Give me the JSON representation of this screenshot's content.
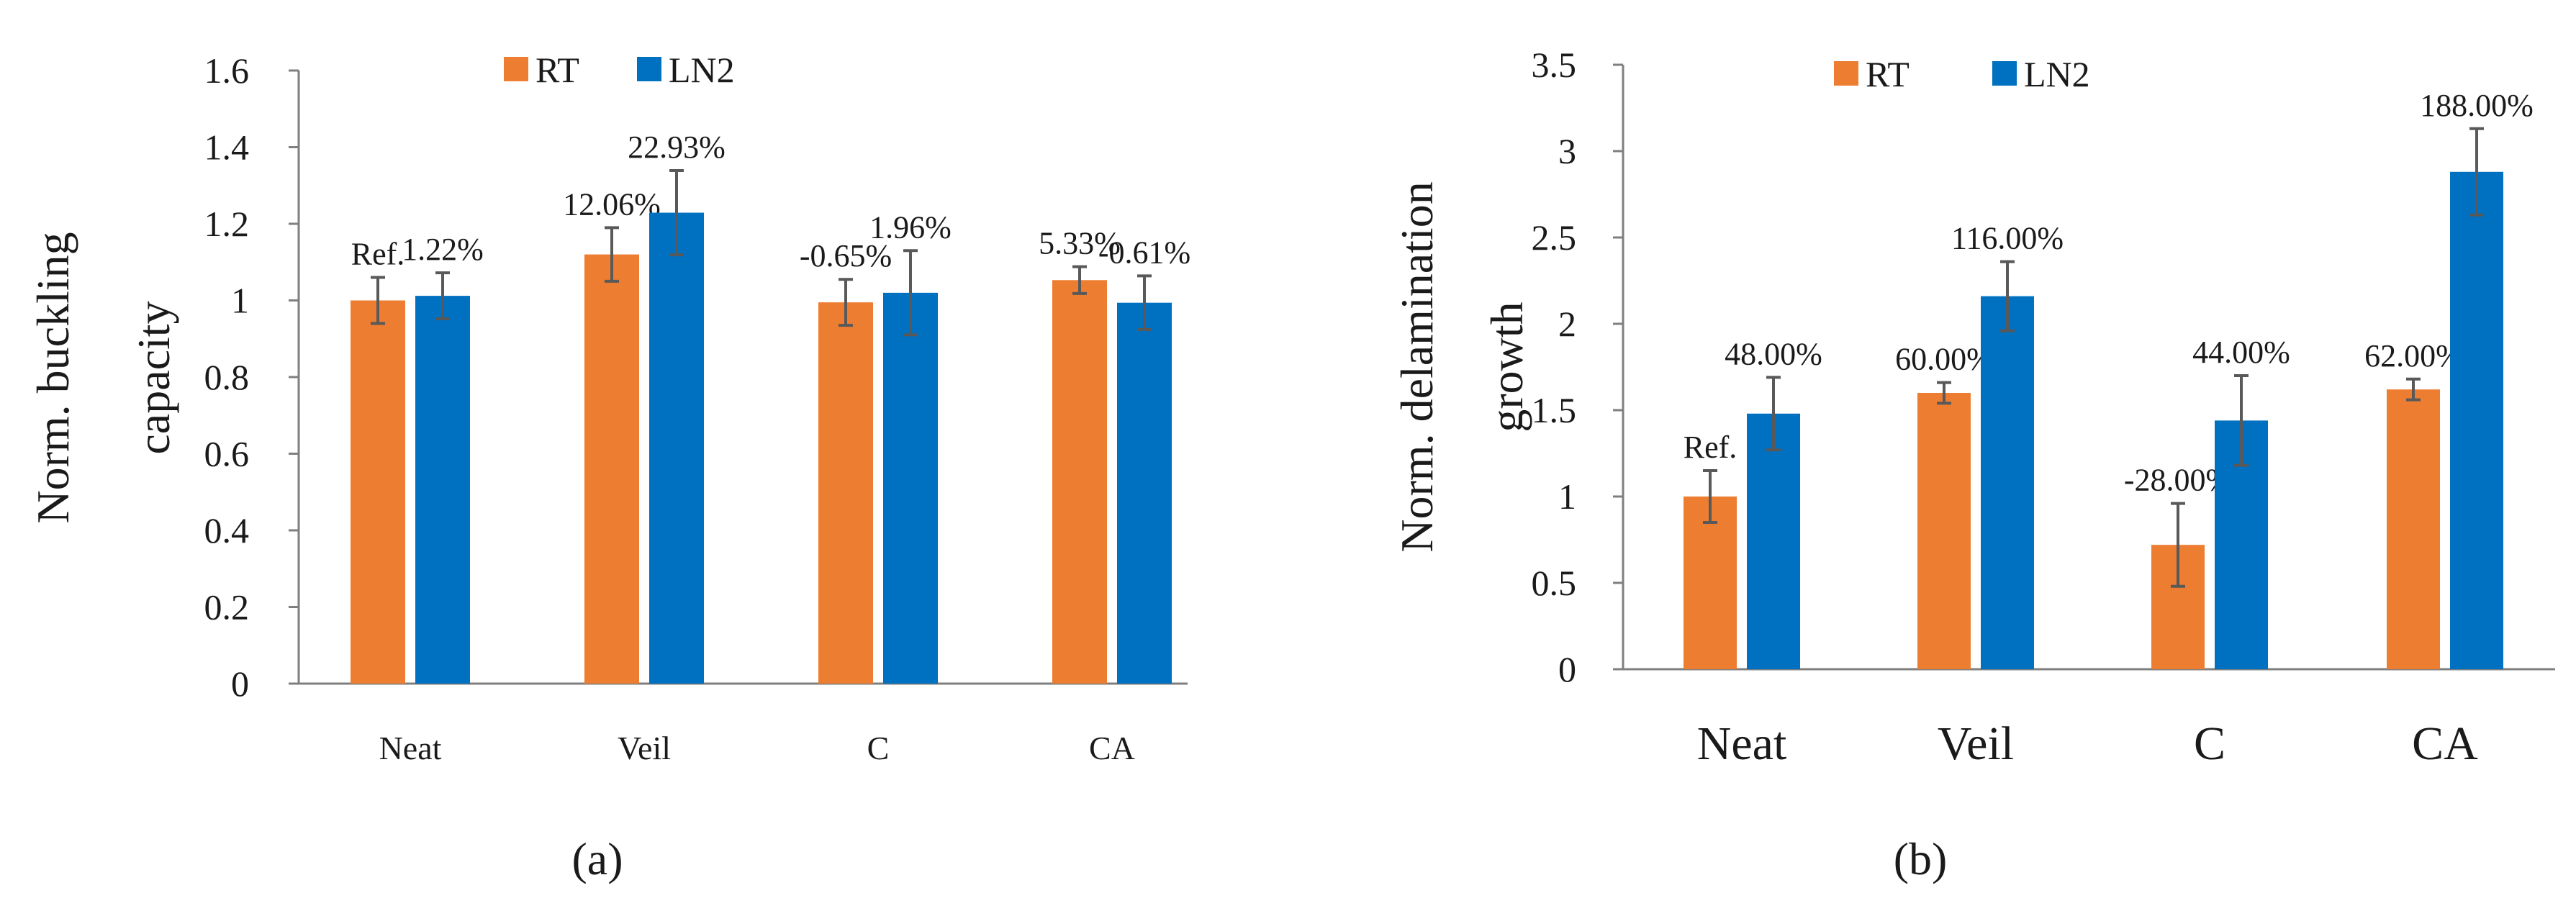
{
  "legend": [
    {
      "name": "RT",
      "color": "#ED7D31"
    },
    {
      "name": "LN2",
      "color": "#0070C0"
    }
  ],
  "error_bar_color": "#595959",
  "chart_data": [
    {
      "type": "bar",
      "panel_label": "(a)",
      "categories": [
        "Neat",
        "Veil",
        "C",
        "CA"
      ],
      "ylabel_lines": [
        "Norm. buckling",
        "capacity"
      ],
      "ylim": [
        0,
        1.6
      ],
      "yticks": [
        "0",
        "0.2",
        "0.4",
        "0.6",
        "0.8",
        "1",
        "1.2",
        "1.4",
        "1.6"
      ],
      "tick_step": 0.2,
      "legend_position": "top-center",
      "series": [
        {
          "name": "RT",
          "values": [
            1.0,
            1.12,
            0.995,
            1.053
          ],
          "errors": [
            0.06,
            0.07,
            0.06,
            0.035
          ],
          "labels": [
            "Ref.",
            "12.06%",
            "-0.65%",
            "5.33%"
          ]
        },
        {
          "name": "LN2",
          "values": [
            1.012,
            1.229,
            1.02,
            0.994
          ],
          "errors": [
            0.06,
            0.11,
            0.11,
            0.07
          ],
          "labels": [
            "1.22%",
            "22.93%",
            "1.96%",
            "-0.61%"
          ]
        }
      ]
    },
    {
      "type": "bar",
      "panel_label": "(b)",
      "categories": [
        "Neat",
        "Veil",
        "C",
        "CA"
      ],
      "ylabel_lines": [
        "Norm. delamination",
        "growth"
      ],
      "ylim": [
        0,
        3.5
      ],
      "yticks": [
        "0",
        "0.5",
        "1",
        "1.5",
        "2",
        "2.5",
        "3",
        "3.5"
      ],
      "tick_step": 0.5,
      "legend_position": "top-center",
      "series": [
        {
          "name": "RT",
          "values": [
            1.0,
            1.6,
            0.72,
            1.62
          ],
          "errors": [
            0.15,
            0.06,
            0.24,
            0.06
          ],
          "labels": [
            "Ref.",
            "60.00%",
            "-28.00%",
            "62.00%"
          ]
        },
        {
          "name": "LN2",
          "values": [
            1.48,
            2.16,
            1.44,
            2.88
          ],
          "errors": [
            0.21,
            0.2,
            0.26,
            0.25
          ],
          "labels": [
            "48.00%",
            "116.00%",
            "44.00%",
            "188.00%"
          ]
        }
      ]
    }
  ]
}
